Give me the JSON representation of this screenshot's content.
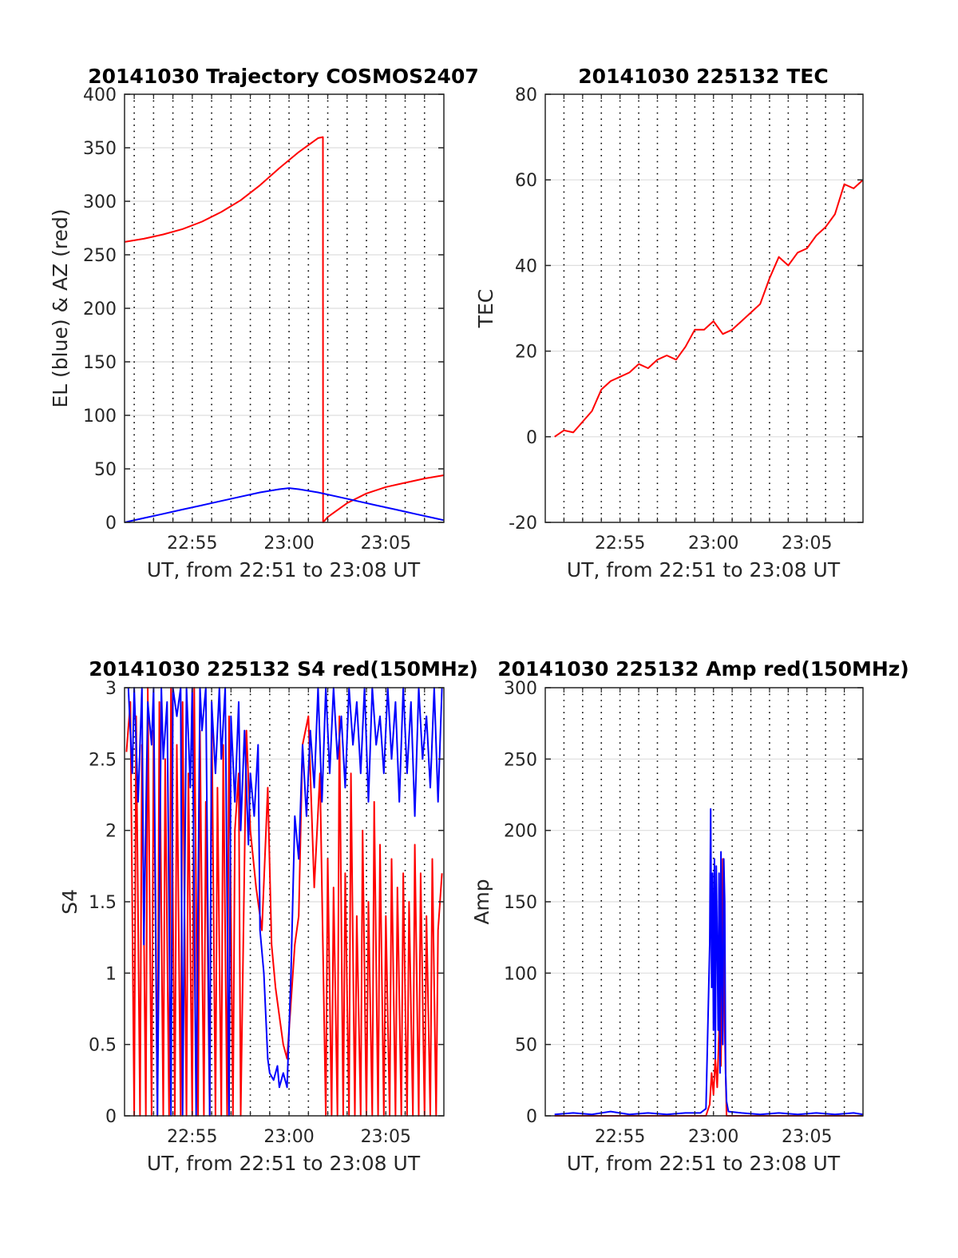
{
  "chart_data": [
    {
      "type": "line",
      "title": "20141030 Trajectory COSMOS2407",
      "xlabel": "UT, from 22:51 to 23:08 UT",
      "ylabel": "EL (blue) & AZ (red)",
      "x_unit": "minutes after 22:00 UT",
      "xlim": [
        51.5,
        68.0
      ],
      "ylim": [
        0,
        400
      ],
      "x_ticks": [
        55,
        60,
        65
      ],
      "x_tick_labels": [
        "22:55",
        "23:00",
        "23:05"
      ],
      "y_ticks": [
        0,
        50,
        100,
        150,
        200,
        250,
        300,
        350,
        400
      ],
      "y_tick_labels": [
        "0",
        "50",
        "100",
        "150",
        "200",
        "250",
        "300",
        "350",
        "400"
      ],
      "grid": true,
      "series": [
        {
          "color": "#ff0000",
          "x": [
            51.5,
            52.5,
            53.5,
            54.5,
            55.5,
            56.5,
            57.5,
            58.5,
            59.5,
            60.5,
            61.5,
            61.75,
            61.76,
            62.0,
            63.0,
            64.0,
            65.0,
            66.0,
            67.0,
            68.0
          ],
          "y": [
            262,
            265,
            269,
            274,
            281,
            290,
            301,
            315,
            331,
            346,
            359,
            360,
            0,
            5,
            18,
            27,
            33,
            37,
            41,
            44
          ]
        },
        {
          "color": "#0000ff",
          "x": [
            51.5,
            52.5,
            53.5,
            54.5,
            55.5,
            56.5,
            57.5,
            58.5,
            59.5,
            60.0,
            60.5,
            61.5,
            62.5,
            63.5,
            64.5,
            65.5,
            66.5,
            67.5,
            68.0
          ],
          "y": [
            0,
            4,
            8,
            12,
            16,
            20,
            24,
            28,
            31,
            32,
            31,
            28,
            24,
            20,
            16,
            12,
            8,
            4,
            2
          ]
        }
      ]
    },
    {
      "type": "line",
      "title": "20141030 225132 TEC",
      "xlabel": "UT, from 22:51 to 23:08 UT",
      "ylabel": "TEC",
      "x_unit": "minutes after 22:00 UT",
      "xlim": [
        51.0,
        68.0
      ],
      "ylim": [
        -20,
        80
      ],
      "x_ticks": [
        55,
        60,
        65
      ],
      "x_tick_labels": [
        "22:55",
        "23:00",
        "23:05"
      ],
      "y_ticks": [
        -20,
        0,
        20,
        40,
        60,
        80
      ],
      "y_tick_labels": [
        "-20",
        "0",
        "20",
        "40",
        "60",
        "80"
      ],
      "grid": true,
      "series": [
        {
          "color": "#ff0000",
          "x": [
            51.5,
            52.0,
            52.5,
            53.0,
            53.5,
            54.0,
            54.5,
            55.0,
            55.5,
            56.0,
            56.5,
            57.0,
            57.5,
            58.0,
            58.5,
            59.0,
            59.5,
            60.0,
            60.5,
            61.0,
            61.5,
            62.0,
            62.5,
            63.0,
            63.5,
            64.0,
            64.5,
            65.0,
            65.5,
            66.0,
            66.5,
            67.0,
            67.5,
            68.0
          ],
          "y": [
            0,
            1.5,
            1,
            3.5,
            6,
            11,
            13,
            14,
            15,
            17,
            16,
            18,
            19,
            18,
            21,
            25,
            25,
            27,
            24,
            25,
            27,
            29,
            31,
            37,
            42,
            40,
            43,
            44,
            47,
            49,
            52,
            59,
            58,
            60
          ]
        }
      ]
    },
    {
      "type": "line",
      "title": "20141030 225132 S4 red(150MHz)",
      "xlabel": "UT, from 22:51 to 23:08 UT",
      "ylabel": "S4",
      "x_unit": "minutes after 22:00 UT",
      "xlim": [
        51.5,
        68.0
      ],
      "ylim": [
        0,
        3
      ],
      "x_ticks": [
        55,
        60,
        65
      ],
      "x_tick_labels": [
        "22:55",
        "23:00",
        "23:05"
      ],
      "y_ticks": [
        0,
        0.5,
        1,
        1.5,
        2,
        2.5,
        3
      ],
      "y_tick_labels": [
        "0",
        "0.5",
        "1",
        "1.5",
        "2",
        "2.5",
        "3"
      ],
      "grid": true,
      "series": [
        {
          "color": "#ff0000",
          "x": [
            51.6,
            51.8,
            52.0,
            52.1,
            52.3,
            52.4,
            52.6,
            52.7,
            52.9,
            53.0,
            53.2,
            53.3,
            53.5,
            53.6,
            53.8,
            53.9,
            54.1,
            54.2,
            54.4,
            54.5,
            54.7,
            54.8,
            55.0,
            55.1,
            55.3,
            55.4,
            55.6,
            55.7,
            55.9,
            56.0,
            56.2,
            56.3,
            56.5,
            56.6,
            56.8,
            56.9,
            57.1,
            57.2,
            57.4,
            57.5,
            57.7,
            57.8,
            58.0,
            58.3,
            58.6,
            58.9,
            59.1,
            59.3,
            59.5,
            59.7,
            59.9,
            60.1,
            60.3,
            60.5,
            60.7,
            61.0,
            61.3,
            61.6,
            61.9,
            62.0,
            62.2,
            62.3,
            62.5,
            62.6,
            62.8,
            62.9,
            63.1,
            63.2,
            63.4,
            63.5,
            63.7,
            63.8,
            64.0,
            64.1,
            64.3,
            64.4,
            64.6,
            64.7,
            64.9,
            65.0,
            65.2,
            65.3,
            65.5,
            65.6,
            65.8,
            65.9,
            66.1,
            66.2,
            66.4,
            66.5,
            66.7,
            66.8,
            67.0,
            67.1,
            67.3,
            67.4,
            67.6,
            67.7,
            67.9
          ],
          "y": [
            2.55,
            2.9,
            0,
            2.8,
            0,
            2.6,
            0,
            3,
            0,
            2.7,
            0,
            2.9,
            0,
            2.5,
            0,
            3,
            0,
            2.6,
            0,
            2.9,
            0,
            2.4,
            0,
            3,
            0,
            2.7,
            0,
            2.2,
            0,
            2.9,
            0,
            2.3,
            0,
            2.6,
            0,
            2.8,
            0,
            2.0,
            2.4,
            0,
            1.8,
            2.7,
            2.0,
            1.6,
            1.3,
            2.3,
            1.2,
            0.9,
            0.7,
            0.5,
            0.4,
            0.8,
            1.2,
            1.4,
            2.6,
            2.8,
            1.6,
            2.4,
            0,
            1.8,
            0,
            1.6,
            0,
            2.8,
            0,
            1.7,
            0,
            2.4,
            0,
            1.4,
            0,
            2.0,
            0,
            1.5,
            0,
            2.2,
            0,
            1.9,
            0,
            1.4,
            0,
            1.8,
            0,
            1.6,
            0,
            1.7,
            0,
            1.5,
            0,
            1.9,
            0,
            1.7,
            0,
            1.4,
            0,
            1.8,
            0,
            1.3,
            1.7
          ]
        },
        {
          "color": "#0000ff",
          "x": [
            51.7,
            51.9,
            52.0,
            52.2,
            52.4,
            52.5,
            52.7,
            52.9,
            53.0,
            53.2,
            53.4,
            53.5,
            53.7,
            53.9,
            54.0,
            54.2,
            54.4,
            54.5,
            54.7,
            54.9,
            55.0,
            55.2,
            55.4,
            55.5,
            55.7,
            55.9,
            56.0,
            56.2,
            56.4,
            56.5,
            56.7,
            56.9,
            57.0,
            57.2,
            57.4,
            57.5,
            57.7,
            57.9,
            58.0,
            58.2,
            58.4,
            58.5,
            58.7,
            58.9,
            59.0,
            59.2,
            59.4,
            59.5,
            59.7,
            59.9,
            60.1,
            60.3,
            60.5,
            60.7,
            60.9,
            61.1,
            61.3,
            61.5,
            61.7,
            61.9,
            62.1,
            62.3,
            62.5,
            62.7,
            62.9,
            63.1,
            63.3,
            63.5,
            63.7,
            63.9,
            64.1,
            64.3,
            64.5,
            64.7,
            64.9,
            65.1,
            65.3,
            65.5,
            65.7,
            65.9,
            66.1,
            66.3,
            66.5,
            66.7,
            66.9,
            67.1,
            67.3,
            67.5,
            67.7,
            67.9
          ],
          "y": [
            3,
            2.4,
            3,
            2.2,
            3,
            1.2,
            2.9,
            2.6,
            3,
            0,
            3,
            2.5,
            2.9,
            0,
            3,
            2.8,
            3,
            0,
            3,
            2.3,
            3,
            0,
            3,
            2.7,
            3,
            0,
            2.9,
            2.4,
            3,
            2.5,
            3,
            0,
            2.8,
            2.2,
            2.9,
            2.0,
            2.7,
            1.9,
            2.4,
            2.1,
            2.6,
            1.3,
            1.0,
            0.4,
            0.3,
            0.25,
            0.35,
            0.2,
            0.3,
            0.2,
            1.0,
            2.1,
            1.8,
            2.6,
            2.1,
            2.7,
            2.3,
            3,
            2.2,
            3,
            2.4,
            3,
            2.5,
            2.8,
            2.3,
            3,
            2.6,
            2.9,
            2.4,
            3,
            2.2,
            3,
            2.6,
            2.8,
            2.4,
            3,
            2.5,
            2.9,
            2.2,
            3,
            2.4,
            2.9,
            2.1,
            3,
            2.5,
            2.8,
            2.3,
            3,
            2.2,
            3
          ]
        }
      ]
    },
    {
      "type": "line",
      "title": "20141030 225132 Amp red(150MHz)",
      "xlabel": "UT, from 22:51 to 23:08 UT",
      "ylabel": "Amp",
      "x_unit": "minutes after 22:00 UT",
      "xlim": [
        51.0,
        68.0
      ],
      "ylim": [
        0,
        300
      ],
      "x_ticks": [
        55,
        60,
        65
      ],
      "x_tick_labels": [
        "22:55",
        "23:00",
        "23:05"
      ],
      "y_ticks": [
        0,
        50,
        100,
        150,
        200,
        250,
        300
      ],
      "y_tick_labels": [
        "0",
        "50",
        "100",
        "150",
        "200",
        "250",
        "300"
      ],
      "grid": true,
      "series": [
        {
          "color": "#ff0000",
          "x": [
            51.5,
            59.6,
            59.8,
            59.9,
            60.0,
            60.1,
            60.2,
            60.3,
            60.4,
            60.5,
            60.6,
            60.7,
            68.0
          ],
          "y": [
            0,
            0,
            8,
            30,
            15,
            40,
            20,
            60,
            35,
            180,
            60,
            0,
            0
          ]
        },
        {
          "color": "#0000ff",
          "x": [
            51.5,
            52.5,
            53.5,
            54.5,
            55.5,
            56.5,
            57.5,
            58.5,
            59.3,
            59.6,
            59.8,
            59.85,
            59.9,
            59.95,
            60.0,
            60.05,
            60.1,
            60.15,
            60.2,
            60.25,
            60.3,
            60.35,
            60.4,
            60.45,
            60.5,
            60.55,
            60.6,
            60.65,
            60.7,
            60.8,
            61.5,
            62.5,
            63.5,
            64.5,
            65.5,
            66.5,
            67.5,
            68.0
          ],
          "y": [
            1,
            2,
            1,
            3,
            1,
            2,
            1,
            2,
            2,
            5,
            120,
            215,
            90,
            170,
            60,
            180,
            40,
            175,
            120,
            60,
            170,
            30,
            185,
            100,
            50,
            180,
            150,
            30,
            10,
            3,
            2,
            1,
            2,
            1,
            2,
            1,
            2,
            1
          ]
        }
      ]
    }
  ]
}
